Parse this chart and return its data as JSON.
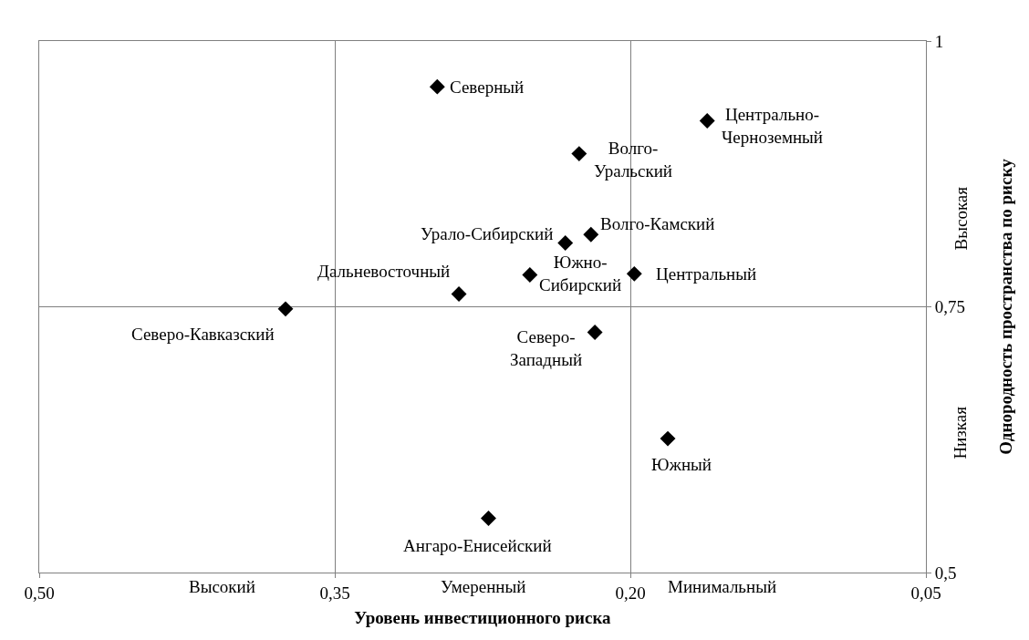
{
  "chart_data": {
    "type": "scatter",
    "xlabel": "Уровень инвестиционного риска",
    "ylabel": "Однородность пространства по риску",
    "x": [
      0.298,
      0.161,
      0.226,
      0.22,
      0.233,
      0.251,
      0.198,
      0.287,
      0.375,
      0.218,
      0.181,
      0.272
    ],
    "series": [
      {
        "color": "#000000",
        "values": [
          0.957,
          0.925,
          0.894,
          0.818,
          0.81,
          0.78,
          0.781,
          0.762,
          0.748,
          0.726,
          0.626,
          0.551
        ]
      }
    ],
    "xlim": [
      0.5,
      0.05
    ],
    "xticks": [
      {
        "value": 0.5,
        "label": "0,50"
      },
      {
        "value": 0.35,
        "label": "0,35"
      },
      {
        "value": 0.2,
        "label": "0,20"
      },
      {
        "value": 0.05,
        "label": "0,05"
      }
    ],
    "ylim": [
      0.5,
      1
    ],
    "yticks": [
      {
        "value": 0.5,
        "label": "0,5"
      },
      {
        "value": 0.75,
        "label": "0,75"
      },
      1
    ],
    "grid": true,
    "marker": "diamond",
    "annotations": [
      {
        "text": "Северный",
        "x": 0.298,
        "y": 0.957
      },
      {
        "text": "Центрально-\nЧерноземный",
        "x": 0.161,
        "y": 0.925
      },
      {
        "text": "Волго-\nУральский",
        "x": 0.226,
        "y": 0.894
      },
      {
        "text": "Волго-Камский",
        "x": 0.22,
        "y": 0.818
      },
      {
        "text": "Урало-Сибирский",
        "x": 0.233,
        "y": 0.81
      },
      {
        "text": "Южно-\nСибирский",
        "x": 0.251,
        "y": 0.78
      },
      {
        "text": "Центральный",
        "x": 0.198,
        "y": 0.781
      },
      {
        "text": "Дальневосточный",
        "x": 0.287,
        "y": 0.762
      },
      {
        "text": "Северо-Кавказский",
        "x": 0.375,
        "y": 0.748
      },
      {
        "text": "Северо-\nЗападный",
        "x": 0.218,
        "y": 0.726
      },
      {
        "text": "Южный",
        "x": 0.181,
        "y": 0.626
      },
      {
        "text": "Ангаро-Енисейский",
        "x": 0.272,
        "y": 0.551
      },
      "Высокий",
      "Умеренный",
      "Минимальный",
      "Высокая",
      "Низкая"
    ]
  }
}
